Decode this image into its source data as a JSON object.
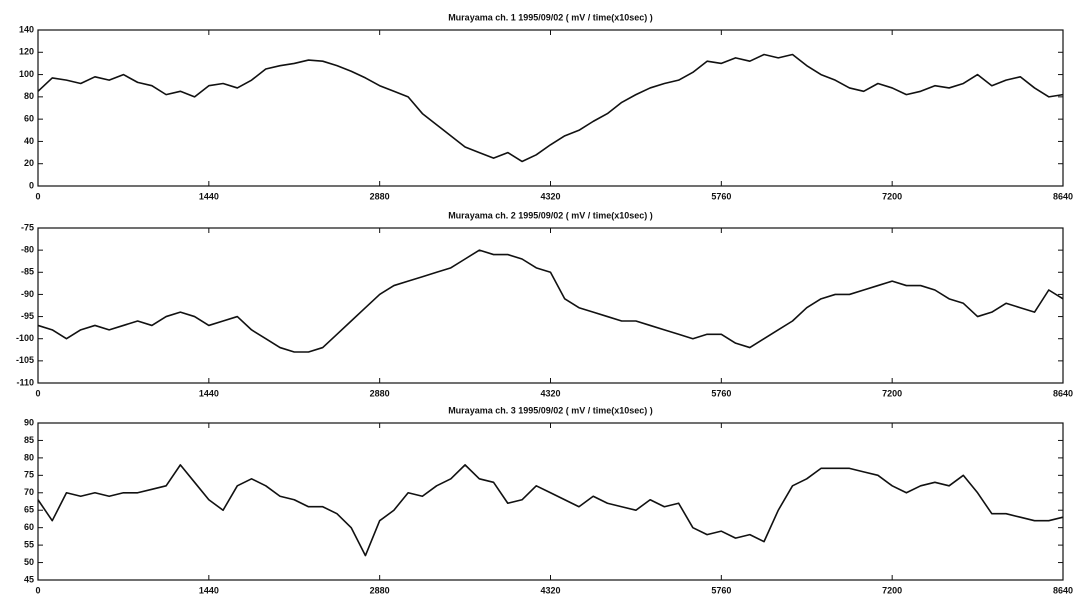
{
  "chart_data": [
    {
      "type": "line",
      "title": "Murayama ch. 1 1995/09/02 ( mV / time(x10sec) )",
      "color": "#111111",
      "x": [
        0,
        120,
        240,
        360,
        480,
        600,
        720,
        840,
        960,
        1080,
        1200,
        1320,
        1440,
        1560,
        1680,
        1800,
        1920,
        2040,
        2160,
        2280,
        2400,
        2520,
        2640,
        2760,
        2880,
        3000,
        3120,
        3240,
        3360,
        3480,
        3600,
        3720,
        3840,
        3960,
        4080,
        4200,
        4320,
        4440,
        4560,
        4680,
        4800,
        4920,
        5040,
        5160,
        5280,
        5400,
        5520,
        5640,
        5760,
        5880,
        6000,
        6120,
        6240,
        6360,
        6480,
        6600,
        6720,
        6840,
        6960,
        7080,
        7200,
        7320,
        7440,
        7560,
        7680,
        7800,
        7920,
        8040,
        8160,
        8280,
        8400,
        8520,
        8640
      ],
      "values": [
        85,
        97,
        95,
        92,
        98,
        95,
        100,
        93,
        90,
        82,
        85,
        80,
        90,
        92,
        88,
        95,
        105,
        108,
        110,
        113,
        112,
        108,
        103,
        97,
        90,
        85,
        80,
        65,
        55,
        45,
        35,
        30,
        25,
        30,
        22,
        28,
        37,
        45,
        50,
        58,
        65,
        75,
        82,
        88,
        92,
        95,
        102,
        112,
        110,
        115,
        112,
        118,
        115,
        118,
        108,
        100,
        95,
        88,
        85,
        92,
        88,
        82,
        85,
        90,
        88,
        92,
        100,
        90,
        95,
        98,
        88,
        80,
        82
      ],
      "xlim": [
        0,
        8640
      ],
      "xticks": [
        0,
        1440,
        2880,
        4320,
        5760,
        7200,
        8640
      ],
      "ylim": [
        0,
        140
      ],
      "yticks": [
        0,
        20,
        40,
        60,
        80,
        100,
        120,
        140
      ]
    },
    {
      "type": "line",
      "title": "Murayama ch. 2 1995/09/02 ( mV / time(x10sec) )",
      "color": "#111111",
      "x": [
        0,
        120,
        240,
        360,
        480,
        600,
        720,
        840,
        960,
        1080,
        1200,
        1320,
        1440,
        1560,
        1680,
        1800,
        1920,
        2040,
        2160,
        2280,
        2400,
        2520,
        2640,
        2760,
        2880,
        3000,
        3120,
        3240,
        3360,
        3480,
        3600,
        3720,
        3840,
        3960,
        4080,
        4200,
        4320,
        4440,
        4560,
        4680,
        4800,
        4920,
        5040,
        5160,
        5280,
        5400,
        5520,
        5640,
        5760,
        5880,
        6000,
        6120,
        6240,
        6360,
        6480,
        6600,
        6720,
        6840,
        6960,
        7080,
        7200,
        7320,
        7440,
        7560,
        7680,
        7800,
        7920,
        8040,
        8160,
        8280,
        8400,
        8520,
        8640
      ],
      "values": [
        -97,
        -98,
        -100,
        -98,
        -97,
        -98,
        -97,
        -96,
        -97,
        -95,
        -94,
        -95,
        -97,
        -96,
        -95,
        -98,
        -100,
        -102,
        -103,
        -103,
        -102,
        -99,
        -96,
        -93,
        -90,
        -88,
        -87,
        -86,
        -85,
        -84,
        -82,
        -80,
        -81,
        -81,
        -82,
        -84,
        -85,
        -91,
        -93,
        -94,
        -95,
        -96,
        -96,
        -97,
        -98,
        -99,
        -100,
        -99,
        -99,
        -101,
        -102,
        -100,
        -98,
        -96,
        -93,
        -91,
        -90,
        -90,
        -89,
        -88,
        -87,
        -88,
        -88,
        -89,
        -91,
        -92,
        -95,
        -94,
        -92,
        -93,
        -94,
        -89,
        -91
      ],
      "xlim": [
        0,
        8640
      ],
      "xticks": [
        0,
        1440,
        2880,
        4320,
        5760,
        7200,
        8640
      ],
      "ylim": [
        -110,
        -75
      ],
      "yticks": [
        -110,
        -105,
        -100,
        -95,
        -90,
        -85,
        -80,
        -75
      ]
    },
    {
      "type": "line",
      "title": "Murayama ch. 3 1995/09/02 ( mV / time(x10sec) )",
      "color": "#111111",
      "x": [
        0,
        120,
        240,
        360,
        480,
        600,
        720,
        840,
        960,
        1080,
        1200,
        1320,
        1440,
        1560,
        1680,
        1800,
        1920,
        2040,
        2160,
        2280,
        2400,
        2520,
        2640,
        2760,
        2880,
        3000,
        3120,
        3240,
        3360,
        3480,
        3600,
        3720,
        3840,
        3960,
        4080,
        4200,
        4320,
        4440,
        4560,
        4680,
        4800,
        4920,
        5040,
        5160,
        5280,
        5400,
        5520,
        5640,
        5760,
        5880,
        6000,
        6120,
        6240,
        6360,
        6480,
        6600,
        6720,
        6840,
        6960,
        7080,
        7200,
        7320,
        7440,
        7560,
        7680,
        7800,
        7920,
        8040,
        8160,
        8280,
        8400,
        8520,
        8640
      ],
      "values": [
        68,
        62,
        70,
        69,
        70,
        69,
        70,
        70,
        71,
        72,
        78,
        73,
        68,
        65,
        72,
        74,
        72,
        69,
        68,
        66,
        66,
        64,
        60,
        52,
        62,
        65,
        70,
        69,
        72,
        74,
        78,
        74,
        73,
        67,
        68,
        72,
        70,
        68,
        66,
        69,
        67,
        66,
        65,
        68,
        66,
        67,
        60,
        58,
        59,
        57,
        58,
        56,
        65,
        72,
        74,
        77,
        77,
        77,
        76,
        75,
        72,
        70,
        72,
        73,
        72,
        75,
        70,
        64,
        64,
        63,
        62,
        62,
        63
      ],
      "xlim": [
        0,
        8640
      ],
      "xticks": [
        0,
        1440,
        2880,
        4320,
        5760,
        7200,
        8640
      ],
      "ylim": [
        45,
        90
      ],
      "yticks": [
        45,
        50,
        55,
        60,
        65,
        70,
        75,
        80,
        85,
        90
      ]
    }
  ]
}
